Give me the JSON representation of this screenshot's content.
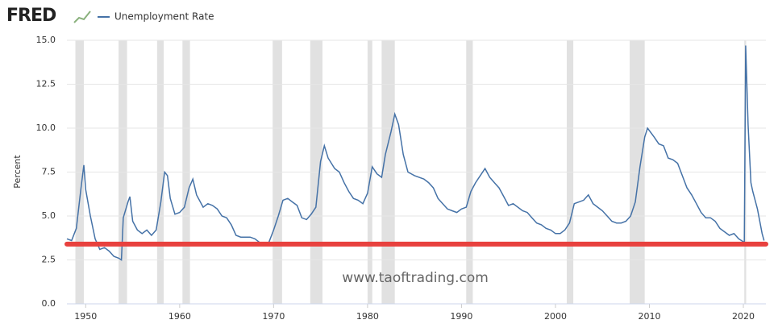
{
  "chart_data": {
    "type": "line",
    "brand": "FRED",
    "ylabel": "Percent",
    "watermark": "www.taoftrading.com",
    "x": [
      1948.0,
      1948.5,
      1949.0,
      1949.5,
      1949.8,
      1950.0,
      1950.5,
      1951.0,
      1951.5,
      1952.0,
      1952.5,
      1953.0,
      1953.5,
      1953.8,
      1954.0,
      1954.5,
      1954.7,
      1955.0,
      1955.5,
      1956.0,
      1956.5,
      1957.0,
      1957.5,
      1958.0,
      1958.4,
      1958.7,
      1959.0,
      1959.5,
      1960.0,
      1960.5,
      1961.0,
      1961.4,
      1961.8,
      1962.5,
      1963.0,
      1963.5,
      1964.0,
      1964.5,
      1965.0,
      1965.5,
      1966.0,
      1966.5,
      1967.5,
      1968.0,
      1968.5,
      1969.5,
      1970.0,
      1970.5,
      1971.0,
      1971.5,
      1972.0,
      1972.5,
      1973.0,
      1973.5,
      1974.0,
      1974.5,
      1975.0,
      1975.4,
      1975.8,
      1976.5,
      1977.0,
      1977.5,
      1978.0,
      1978.5,
      1979.0,
      1979.5,
      1980.0,
      1980.5,
      1981.0,
      1981.5,
      1981.9,
      1982.5,
      1982.9,
      1983.3,
      1983.8,
      1984.3,
      1985.0,
      1986.0,
      1986.5,
      1987.0,
      1987.5,
      1988.0,
      1988.5,
      1989.0,
      1989.5,
      1990.0,
      1990.5,
      1991.0,
      1991.5,
      1992.0,
      1992.5,
      1993.0,
      1993.5,
      1994.0,
      1994.5,
      1995.0,
      1995.5,
      1996.5,
      1997.0,
      1997.5,
      1998.0,
      1998.5,
      1999.0,
      1999.5,
      2000.0,
      2000.5,
      2001.0,
      2001.5,
      2002.0,
      2002.5,
      2003.0,
      2003.5,
      2004.0,
      2004.5,
      2005.0,
      2005.5,
      2006.0,
      2006.5,
      2007.0,
      2007.5,
      2008.0,
      2008.5,
      2009.0,
      2009.5,
      2009.8,
      2010.5,
      2011.0,
      2011.5,
      2012.0,
      2012.5,
      2013.0,
      2013.5,
      2014.0,
      2014.5,
      2015.0,
      2015.5,
      2016.0,
      2016.5,
      2017.0,
      2017.5,
      2018.0,
      2018.5,
      2019.0,
      2019.5,
      2020.1,
      2020.25,
      2020.5,
      2020.8,
      2021.0,
      2021.5,
      2022.0,
      2022.2
    ],
    "series": [
      {
        "name": "Unemployment Rate",
        "color": "#4572a7",
        "values": [
          3.7,
          3.6,
          4.3,
          6.6,
          7.9,
          6.5,
          5.0,
          3.7,
          3.1,
          3.2,
          3.0,
          2.7,
          2.6,
          2.5,
          4.9,
          5.8,
          6.1,
          4.7,
          4.2,
          4.0,
          4.2,
          3.9,
          4.2,
          5.8,
          7.5,
          7.3,
          6.0,
          5.1,
          5.2,
          5.5,
          6.6,
          7.1,
          6.2,
          5.5,
          5.7,
          5.6,
          5.4,
          5.0,
          4.9,
          4.5,
          3.9,
          3.8,
          3.8,
          3.7,
          3.5,
          3.5,
          4.2,
          5.0,
          5.9,
          6.0,
          5.8,
          5.6,
          4.9,
          4.8,
          5.1,
          5.5,
          8.1,
          9.0,
          8.3,
          7.7,
          7.5,
          6.9,
          6.4,
          6.0,
          5.9,
          5.7,
          6.3,
          7.8,
          7.4,
          7.2,
          8.5,
          9.8,
          10.8,
          10.2,
          8.5,
          7.5,
          7.3,
          7.1,
          6.9,
          6.6,
          6.0,
          5.7,
          5.4,
          5.3,
          5.2,
          5.4,
          5.5,
          6.4,
          6.9,
          7.3,
          7.7,
          7.2,
          6.9,
          6.6,
          6.1,
          5.6,
          5.7,
          5.3,
          5.2,
          4.9,
          4.6,
          4.5,
          4.3,
          4.2,
          4.0,
          4.0,
          4.2,
          4.6,
          5.7,
          5.8,
          5.9,
          6.2,
          5.7,
          5.5,
          5.3,
          5.0,
          4.7,
          4.6,
          4.6,
          4.7,
          5.0,
          5.8,
          7.8,
          9.5,
          10.0,
          9.5,
          9.1,
          9.0,
          8.3,
          8.2,
          8.0,
          7.3,
          6.6,
          6.2,
          5.7,
          5.2,
          4.9,
          4.9,
          4.7,
          4.3,
          4.1,
          3.9,
          4.0,
          3.7,
          3.5,
          14.7,
          10.2,
          6.9,
          6.4,
          5.4,
          4.0,
          3.6
        ]
      }
    ],
    "recessions": [
      [
        1948.9,
        1949.8
      ],
      [
        1953.5,
        1954.4
      ],
      [
        1957.6,
        1958.3
      ],
      [
        1960.3,
        1961.1
      ],
      [
        1969.9,
        1970.9
      ],
      [
        1973.9,
        1975.2
      ],
      [
        1980.0,
        1980.5
      ],
      [
        1981.5,
        1982.9
      ],
      [
        1990.5,
        1991.2
      ],
      [
        2001.2,
        2001.9
      ],
      [
        2007.9,
        2009.5
      ],
      [
        2020.1,
        2020.3
      ]
    ],
    "reference_line": {
      "value": 3.4,
      "color": "#e8413e"
    },
    "xlim": [
      1948.0,
      2022.4
    ],
    "xticks": [
      1950,
      1960,
      1970,
      1980,
      1990,
      2000,
      2010,
      2020
    ],
    "ylim": [
      0,
      15
    ],
    "yticks": [
      {
        "value": 0,
        "label": "0.0"
      },
      {
        "value": 2.5,
        "label": "2.5"
      },
      {
        "value": 5,
        "label": "5.0"
      },
      {
        "value": 7.5,
        "label": "7.5"
      },
      {
        "value": 10,
        "label": "10.0"
      },
      {
        "value": 12.5,
        "label": "12.5"
      },
      {
        "value": 15,
        "label": "15.0"
      }
    ],
    "grid": true
  }
}
